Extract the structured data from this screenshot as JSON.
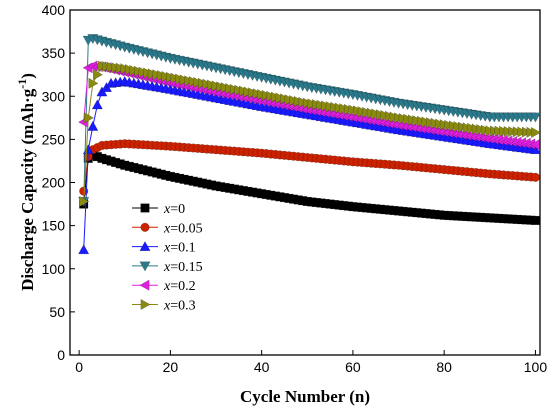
{
  "chart_data": {
    "type": "scatter",
    "xlabel": "Cycle Number (n)",
    "ylabel": "Discharge Capacity (mAh·g",
    "ylabel_sup": "-1",
    "ylabel_end": ")",
    "xlim": [
      -2,
      101
    ],
    "ylim": [
      0,
      400
    ],
    "xticks": [
      0,
      20,
      40,
      60,
      80,
      100
    ],
    "yticks": [
      0,
      50,
      100,
      150,
      200,
      250,
      300,
      350,
      400
    ],
    "legend_position": "center-left",
    "series": [
      {
        "name": "x=0",
        "var": "x",
        "val": "=0",
        "marker": "square",
        "color": "#000000",
        "points": [
          [
            1,
            175
          ],
          [
            2,
            228
          ],
          [
            3,
            232
          ],
          [
            5,
            228
          ],
          [
            10,
            220
          ],
          [
            20,
            207
          ],
          [
            30,
            196
          ],
          [
            40,
            187
          ],
          [
            50,
            178
          ],
          [
            60,
            172
          ],
          [
            70,
            167
          ],
          [
            80,
            162
          ],
          [
            90,
            159
          ],
          [
            100,
            156
          ]
        ]
      },
      {
        "name": "x=0.05",
        "var": "x",
        "val": "=0.05",
        "marker": "circle",
        "color": "#cc2200",
        "points": [
          [
            1,
            190
          ],
          [
            2,
            230
          ],
          [
            3,
            238
          ],
          [
            5,
            243
          ],
          [
            10,
            245
          ],
          [
            20,
            242
          ],
          [
            30,
            238
          ],
          [
            40,
            234
          ],
          [
            50,
            229
          ],
          [
            60,
            224
          ],
          [
            70,
            220
          ],
          [
            80,
            215
          ],
          [
            90,
            210
          ],
          [
            100,
            206
          ]
        ]
      },
      {
        "name": "x=0.1",
        "var": "x",
        "val": "=0.1",
        "marker": "triangle-up",
        "color": "#1a1aff",
        "points": [
          [
            1,
            122
          ],
          [
            2,
            238
          ],
          [
            3,
            265
          ],
          [
            4,
            290
          ],
          [
            5,
            305
          ],
          [
            7,
            315
          ],
          [
            10,
            317
          ],
          [
            20,
            308
          ],
          [
            30,
            298
          ],
          [
            40,
            288
          ],
          [
            50,
            279
          ],
          [
            60,
            270
          ],
          [
            70,
            261
          ],
          [
            80,
            253
          ],
          [
            90,
            245
          ],
          [
            100,
            238
          ]
        ]
      },
      {
        "name": "x=0.15",
        "var": "x",
        "val": "=0.15",
        "marker": "triangle-down",
        "color": "#2a7a8c",
        "points": [
          [
            1,
            178
          ],
          [
            2,
            365
          ],
          [
            3,
            367
          ],
          [
            5,
            364
          ],
          [
            10,
            357
          ],
          [
            20,
            344
          ],
          [
            30,
            333
          ],
          [
            40,
            322
          ],
          [
            50,
            311
          ],
          [
            60,
            302
          ],
          [
            70,
            292
          ],
          [
            80,
            284
          ],
          [
            90,
            276
          ],
          [
            100,
            276
          ]
        ]
      },
      {
        "name": "x=0.2",
        "var": "x",
        "val": "=0.2",
        "marker": "triangle-left",
        "color": "#e020e0",
        "points": [
          [
            1,
            270
          ],
          [
            2,
            333
          ],
          [
            3,
            335
          ],
          [
            5,
            334
          ],
          [
            10,
            328
          ],
          [
            20,
            316
          ],
          [
            30,
            305
          ],
          [
            40,
            295
          ],
          [
            50,
            285
          ],
          [
            60,
            276
          ],
          [
            70,
            267
          ],
          [
            80,
            259
          ],
          [
            90,
            251
          ],
          [
            100,
            244
          ]
        ]
      },
      {
        "name": "x=0.3",
        "var": "x",
        "val": "=0.3",
        "marker": "triangle-right",
        "color": "#8a8a10",
        "points": [
          [
            1,
            178
          ],
          [
            2,
            275
          ],
          [
            3,
            315
          ],
          [
            5,
            335
          ],
          [
            10,
            332
          ],
          [
            20,
            322
          ],
          [
            30,
            312
          ],
          [
            40,
            302
          ],
          [
            50,
            292
          ],
          [
            60,
            284
          ],
          [
            70,
            275
          ],
          [
            80,
            267
          ],
          [
            90,
            260
          ],
          [
            100,
            258
          ]
        ]
      }
    ]
  }
}
